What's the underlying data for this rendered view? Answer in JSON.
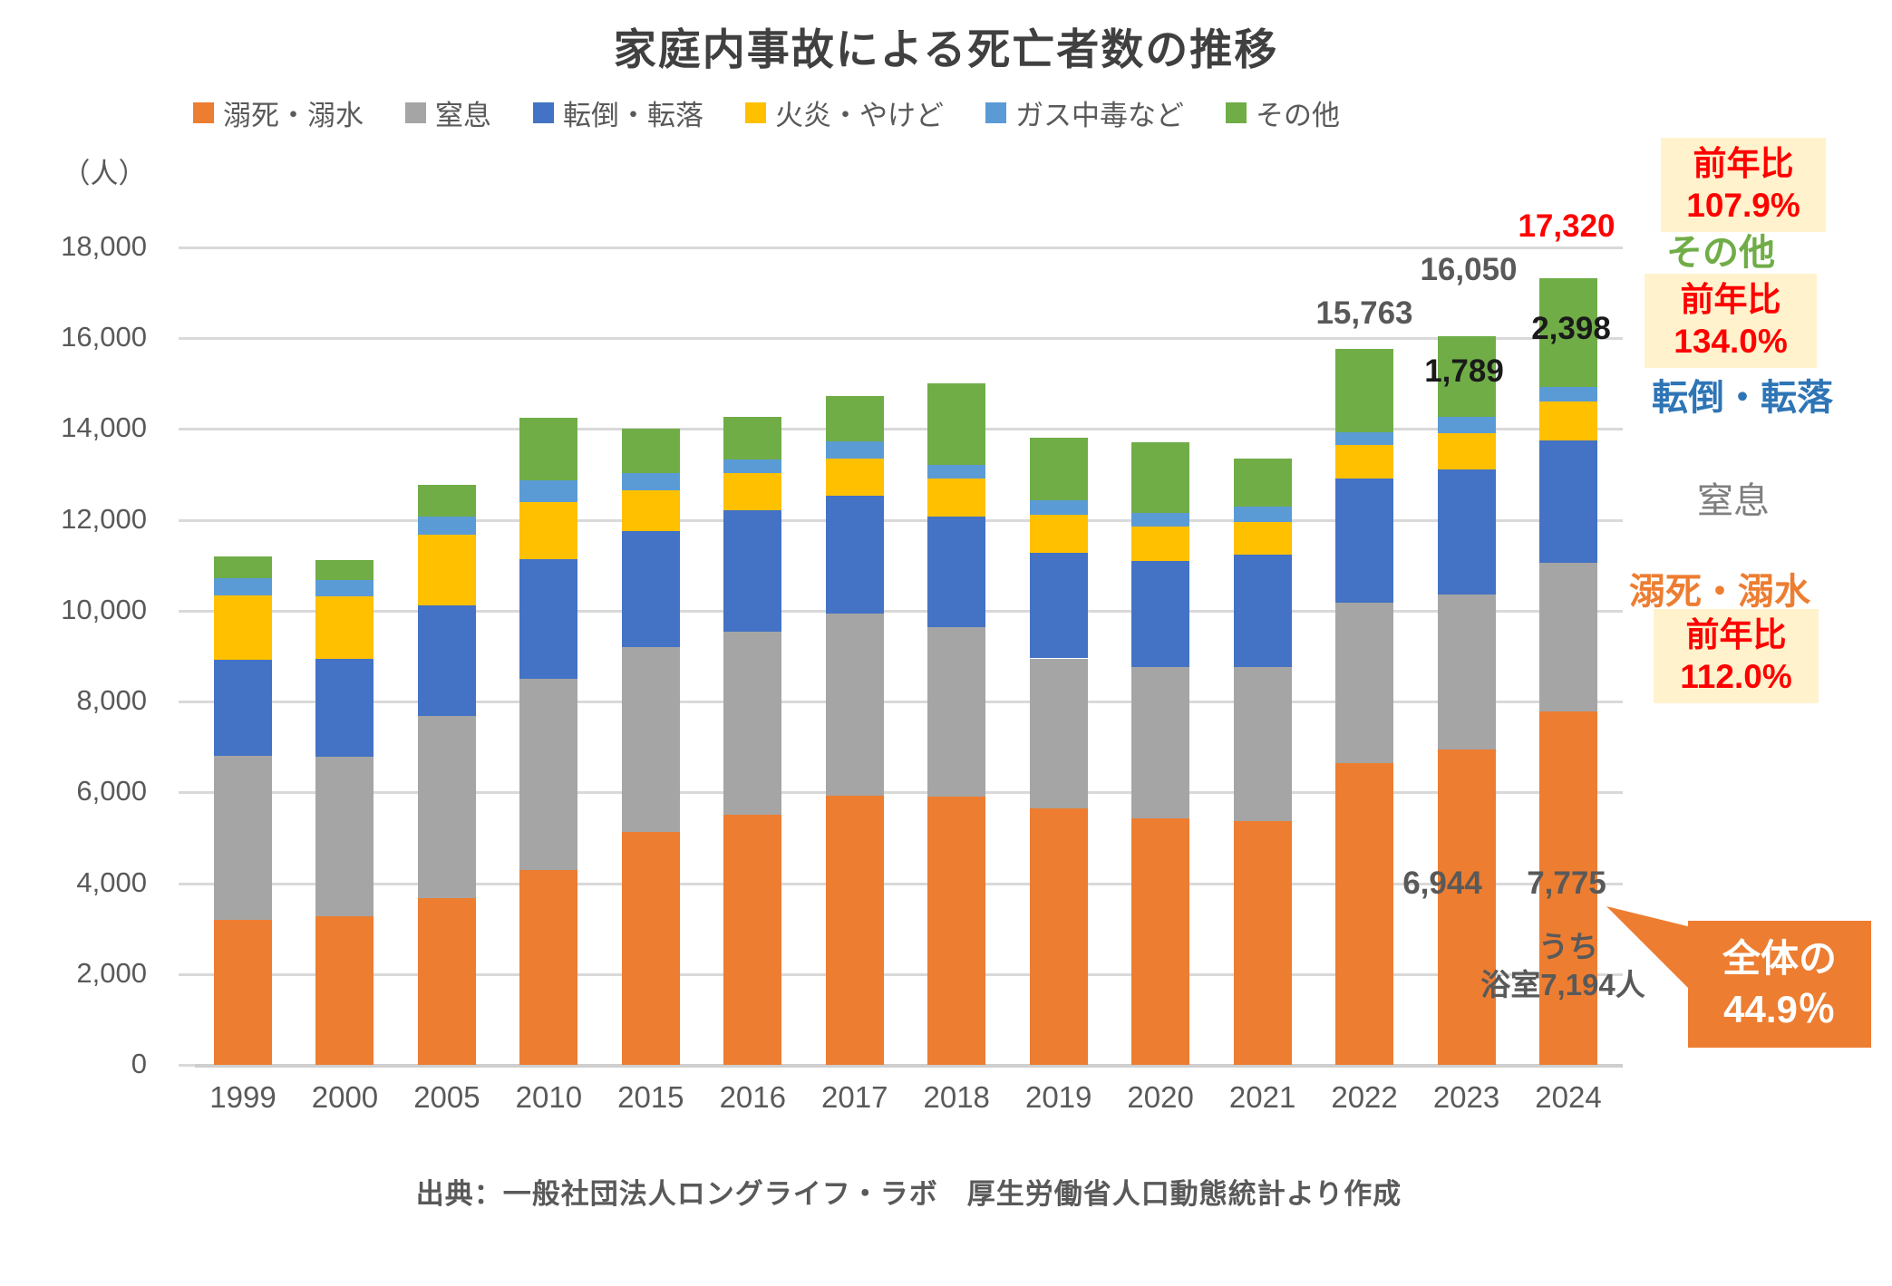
{
  "title": "家庭内事故による死亡者数の推移",
  "source": "出典：一般社団法人ロングライフ・ラボ　厚生労働省人口動態統計より作成",
  "y_axis": {
    "unit": "（人）",
    "ticks": [
      {
        "label": "18,000",
        "value": 18000
      },
      {
        "label": "16,000",
        "value": 16000
      },
      {
        "label": "14,000",
        "value": 14000
      },
      {
        "label": "12,000",
        "value": 12000
      },
      {
        "label": "10,000",
        "value": 10000
      },
      {
        "label": "8,000",
        "value": 8000
      },
      {
        "label": "6,000",
        "value": 6000
      },
      {
        "label": "4,000",
        "value": 4000
      },
      {
        "label": "2,000",
        "value": 2000
      },
      {
        "label": "0",
        "value": 0
      }
    ]
  },
  "colors": {
    "drown": "#ED7D31",
    "choke": "#A5A5A5",
    "fall": "#4472C4",
    "burn": "#FFC000",
    "gas": "#5B9BD5",
    "other": "#70AD47",
    "highlight_red": "#FF0000",
    "box_bg": "#FFF2CC",
    "fall_text": "#2E75B6",
    "choke_text": "#7F7F7F"
  },
  "chart_data": {
    "type": "bar",
    "stacked": true,
    "title": "家庭内事故による死亡者数の推移",
    "xlabel": "",
    "ylabel": "（人）",
    "ylim": [
      0,
      18000
    ],
    "grid": true,
    "legend_position": "top",
    "categories": [
      "1999",
      "2000",
      "2005",
      "2010",
      "2015",
      "2016",
      "2017",
      "2018",
      "2019",
      "2020",
      "2021",
      "2022",
      "2023",
      "2024"
    ],
    "series": [
      {
        "name": "溺死・溺水",
        "color": "#ED7D31",
        "values": [
          3200,
          3280,
          3680,
          4300,
          5120,
          5500,
          5920,
          5900,
          5650,
          5420,
          5360,
          6653,
          6944,
          7775
        ]
      },
      {
        "name": "窒息",
        "color": "#A5A5A5",
        "values": [
          3600,
          3500,
          4000,
          4200,
          4070,
          4030,
          4010,
          3730,
          3300,
          3340,
          3400,
          3530,
          3417,
          3290
        ]
      },
      {
        "name": "転倒・転落",
        "color": "#4472C4",
        "values": [
          2120,
          2160,
          2440,
          2640,
          2570,
          2680,
          2610,
          2450,
          2320,
          2330,
          2480,
          2730,
          2740,
          2690
        ]
      },
      {
        "name": "火炎・やけど",
        "color": "#FFC000",
        "values": [
          1420,
          1380,
          1560,
          1260,
          890,
          820,
          820,
          830,
          840,
          765,
          720,
          730,
          800,
          850
        ]
      },
      {
        "name": "ガス中毒など",
        "color": "#5B9BD5",
        "values": [
          380,
          360,
          400,
          480,
          380,
          300,
          370,
          300,
          330,
          295,
          330,
          290,
          360,
          320
        ]
      },
      {
        "name": "その他",
        "color": "#70AD47",
        "values": [
          480,
          440,
          700,
          1360,
          970,
          930,
          1000,
          1800,
          1360,
          1550,
          1060,
          1830,
          1789,
          2398
        ]
      }
    ],
    "totals": [
      11200,
      11120,
      12780,
      14240,
      14000,
      14260,
      14730,
      15010,
      13800,
      13700,
      13350,
      15763,
      16050,
      17320
    ]
  },
  "annotations": {
    "total_2022": "15,763",
    "total_2023": "16,050",
    "total_2024": "17,320",
    "other_2024": "2,398",
    "other_2023": "1,789",
    "drown_2023": "6,944",
    "drown_2024": "7,775",
    "bath_note_line1": "うち",
    "bath_note_line2": "浴室7,194人",
    "yoy_total": {
      "line1": "前年比",
      "line2": "107.9%"
    },
    "yoy_other": {
      "line1": "前年比",
      "line2": "134.0%"
    },
    "yoy_drown": {
      "line1": "前年比",
      "line2": "112.0%"
    },
    "label_other": "その他",
    "label_fall": "転倒・転落",
    "label_choke": "窒息",
    "label_drown": "溺死・溺水",
    "callout": {
      "line1": "全体の",
      "line2": "44.9％"
    }
  }
}
